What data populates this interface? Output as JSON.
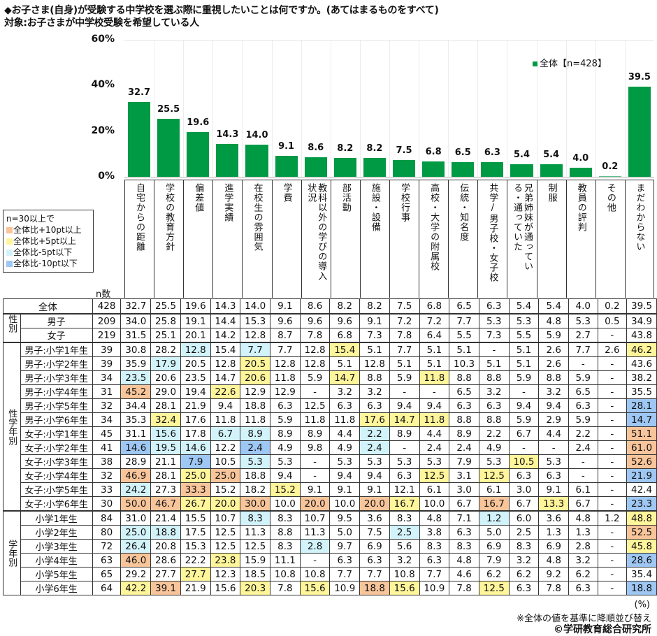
{
  "header": {
    "title": "◆お子さま(自身)が受験する中学校を選ぶ際に重視したいことは何ですか。(あてはまるものをすべて)",
    "subtitle": "対象:お子さまが中学校受験を希望している人"
  },
  "chart_data": {
    "type": "bar",
    "title": "お子さま(自身)が受験する中学校を選ぶ際に重視したいことは何ですか。(あてはまるものをすべて)",
    "xlabel": "",
    "ylabel": "",
    "ylim": [
      0,
      60
    ],
    "yticks": [
      "60%",
      "40%",
      "20%",
      "0%"
    ],
    "legend": {
      "label": "全体【n=428】",
      "position": "top-right",
      "color": "#009944"
    },
    "grid": true,
    "categories": [
      "自宅からの距離",
      "学校の教育方針",
      "偏差値",
      "進学実績",
      "在校生の雰囲気",
      "学費",
      "教科以外の学びの導入状況",
      "部活動",
      "施設・設備",
      "学校行事",
      "高校・大学の附属校",
      "伝統・知名度",
      "共学/男子校・女子校",
      "兄弟姉妹が通っている・通っていた",
      "制服",
      "教員の評判",
      "その他",
      "まだわからない"
    ],
    "values": [
      32.7,
      25.5,
      19.6,
      14.3,
      14.0,
      9.1,
      8.6,
      8.2,
      8.2,
      7.5,
      6.8,
      6.5,
      6.3,
      5.4,
      5.4,
      4.0,
      0.2,
      39.5
    ]
  },
  "chart": {
    "yticks": [
      {
        "label": "60%",
        "value": 60
      },
      {
        "label": "40%",
        "value": 40
      },
      {
        "label": "20%",
        "value": 20
      },
      {
        "label": "0%",
        "value": 0
      }
    ],
    "legend_label": "全体【n=428】",
    "bar_color": "#009944"
  },
  "color_legend": {
    "title": "n=30以上で",
    "items": [
      {
        "label": "全体比+10pt以上",
        "color": "#f8c59a",
        "key": "o10"
      },
      {
        "label": "全体比+5pt以上",
        "color": "#fff59a",
        "key": "o5"
      },
      {
        "label": "全体比-5pt以下",
        "color": "#d3f3fa",
        "key": "u5"
      },
      {
        "label": "全体比-10pt以下",
        "color": "#9ec7f3",
        "key": "u10"
      }
    ]
  },
  "table": {
    "n_header": "n数",
    "groups": {
      "gender": "性別",
      "gender_grade": "性学年別",
      "grade": "学年別"
    },
    "rows": [
      {
        "group": "total",
        "label": "全体",
        "n": "428",
        "values": [
          "32.7",
          "25.5",
          "19.6",
          "14.3",
          "14.0",
          "9.1",
          "8.6",
          "8.2",
          "8.2",
          "7.5",
          "6.8",
          "6.5",
          "6.3",
          "5.4",
          "5.4",
          "4.0",
          "0.2",
          "39.5"
        ],
        "hl": [
          "",
          "",
          "",
          "",
          "",
          "",
          "",
          "",
          "",
          "",
          "",
          "",
          "",
          "",
          "",
          "",
          "",
          ""
        ]
      },
      {
        "group": "gender",
        "label": "男子",
        "n": "209",
        "values": [
          "34.0",
          "25.8",
          "19.1",
          "14.4",
          "15.3",
          "9.6",
          "9.6",
          "9.6",
          "9.1",
          "7.2",
          "7.2",
          "7.7",
          "5.3",
          "5.3",
          "4.8",
          "5.3",
          "0.5",
          "34.9"
        ],
        "hl": [
          "",
          "",
          "",
          "",
          "",
          "",
          "",
          "",
          "",
          "",
          "",
          "",
          "",
          "",
          "",
          "",
          "",
          ""
        ]
      },
      {
        "group": "gender",
        "label": "女子",
        "n": "219",
        "values": [
          "31.5",
          "25.1",
          "20.1",
          "14.2",
          "12.8",
          "8.7",
          "7.8",
          "6.8",
          "7.3",
          "7.8",
          "6.4",
          "5.5",
          "7.3",
          "5.5",
          "5.9",
          "2.7",
          "-",
          "43.8"
        ],
        "hl": [
          "",
          "",
          "",
          "",
          "",
          "",
          "",
          "",
          "",
          "",
          "",
          "",
          "",
          "",
          "",
          "",
          "",
          ""
        ]
      },
      {
        "group": "gender_grade",
        "label": "男子:小学1年生",
        "n": "39",
        "values": [
          "30.8",
          "28.2",
          "12.8",
          "15.4",
          "7.7",
          "7.7",
          "12.8",
          "15.4",
          "5.1",
          "7.7",
          "5.1",
          "5.1",
          "-",
          "5.1",
          "2.6",
          "7.7",
          "2.6",
          "46.2"
        ],
        "hl": [
          "",
          "",
          "u5",
          "",
          "u5",
          "",
          "",
          "o5",
          "",
          "",
          "",
          "",
          "",
          "",
          "",
          "",
          "",
          "o5"
        ]
      },
      {
        "group": "gender_grade",
        "label": "男子:小学2年生",
        "n": "39",
        "values": [
          "35.9",
          "17.9",
          "20.5",
          "12.8",
          "20.5",
          "12.8",
          "12.8",
          "5.1",
          "12.8",
          "5.1",
          "5.1",
          "10.3",
          "5.1",
          "5.1",
          "2.6",
          "-",
          "-",
          "43.6"
        ],
        "hl": [
          "",
          "u5",
          "",
          "",
          "o5",
          "",
          "",
          "",
          "",
          "",
          "",
          "",
          "",
          "",
          "",
          "",
          "",
          ""
        ]
      },
      {
        "group": "gender_grade",
        "label": "男子:小学3年生",
        "n": "34",
        "values": [
          "23.5",
          "20.6",
          "23.5",
          "14.7",
          "20.6",
          "11.8",
          "5.9",
          "14.7",
          "8.8",
          "5.9",
          "11.8",
          "8.8",
          "8.8",
          "5.9",
          "8.8",
          "5.9",
          "-",
          "38.2"
        ],
        "hl": [
          "u5",
          "",
          "",
          "",
          "o5",
          "",
          "",
          "o5",
          "",
          "",
          "o5",
          "",
          "",
          "",
          "",
          "",
          "",
          ""
        ]
      },
      {
        "group": "gender_grade",
        "label": "男子:小学4年生",
        "n": "31",
        "values": [
          "45.2",
          "29.0",
          "19.4",
          "22.6",
          "12.9",
          "12.9",
          "-",
          "3.2",
          "3.2",
          "-",
          "-",
          "6.5",
          "3.2",
          "-",
          "3.2",
          "6.5",
          "-",
          "35.5"
        ],
        "hl": [
          "o10",
          "",
          "",
          "o5",
          "",
          "",
          "",
          "",
          "",
          "",
          "",
          "",
          "",
          "",
          "",
          "",
          "",
          ""
        ]
      },
      {
        "group": "gender_grade",
        "label": "男子:小学5年生",
        "n": "32",
        "values": [
          "34.4",
          "28.1",
          "21.9",
          "9.4",
          "18.8",
          "6.3",
          "12.5",
          "6.3",
          "6.3",
          "9.4",
          "9.4",
          "6.3",
          "6.3",
          "9.4",
          "9.4",
          "6.3",
          "-",
          "28.1"
        ],
        "hl": [
          "",
          "",
          "",
          "",
          "",
          "",
          "",
          "",
          "",
          "",
          "",
          "",
          "",
          "",
          "",
          "",
          "",
          "u10"
        ]
      },
      {
        "group": "gender_grade",
        "label": "男子:小学6年生",
        "n": "34",
        "values": [
          "35.3",
          "32.4",
          "17.6",
          "11.8",
          "11.8",
          "5.9",
          "11.8",
          "11.8",
          "17.6",
          "14.7",
          "11.8",
          "8.8",
          "8.8",
          "5.9",
          "2.9",
          "5.9",
          "-",
          "14.7"
        ],
        "hl": [
          "",
          "o5",
          "",
          "",
          "",
          "",
          "",
          "",
          "o5",
          "o5",
          "o5",
          "",
          "",
          "",
          "",
          "",
          "",
          "u10"
        ]
      },
      {
        "group": "gender_grade",
        "label": "女子:小学1年生",
        "n": "45",
        "values": [
          "31.1",
          "15.6",
          "17.8",
          "6.7",
          "8.9",
          "8.9",
          "8.9",
          "4.4",
          "2.2",
          "8.9",
          "4.4",
          "8.9",
          "2.2",
          "6.7",
          "4.4",
          "2.2",
          "-",
          "51.1"
        ],
        "hl": [
          "",
          "u5",
          "",
          "u5",
          "u5",
          "",
          "",
          "",
          "u5",
          "",
          "",
          "",
          "",
          "",
          "",
          "",
          "",
          "o10"
        ]
      },
      {
        "group": "gender_grade",
        "label": "女子:小学2年生",
        "n": "41",
        "values": [
          "14.6",
          "19.5",
          "14.6",
          "12.2",
          "2.4",
          "4.9",
          "9.8",
          "4.9",
          "2.4",
          "-",
          "2.4",
          "2.4",
          "4.9",
          "-",
          "-",
          "2.4",
          "-",
          "61.0"
        ],
        "hl": [
          "u10",
          "u5",
          "u5",
          "",
          "u10",
          "",
          "",
          "",
          "u5",
          "",
          "",
          "",
          "",
          "",
          "",
          "",
          "",
          "o10"
        ]
      },
      {
        "group": "gender_grade",
        "label": "女子:小学3年生",
        "n": "38",
        "values": [
          "28.9",
          "21.1",
          "7.9",
          "10.5",
          "5.3",
          "5.3",
          "-",
          "5.3",
          "5.3",
          "5.3",
          "5.3",
          "7.9",
          "5.3",
          "10.5",
          "5.3",
          "-",
          "-",
          "52.6"
        ],
        "hl": [
          "",
          "",
          "u10",
          "",
          "u5",
          "",
          "",
          "",
          "",
          "",
          "",
          "",
          "",
          "o5",
          "",
          "",
          "",
          "o10"
        ]
      },
      {
        "group": "gender_grade",
        "label": "女子:小学4年生",
        "n": "32",
        "values": [
          "46.9",
          "28.1",
          "25.0",
          "25.0",
          "18.8",
          "9.4",
          "-",
          "9.4",
          "9.4",
          "6.3",
          "12.5",
          "3.1",
          "12.5",
          "6.3",
          "6.3",
          "-",
          "-",
          "21.9"
        ],
        "hl": [
          "o10",
          "",
          "o5",
          "o10",
          "",
          "",
          "",
          "",
          "",
          "",
          "o5",
          "",
          "o5",
          "",
          "",
          "",
          "",
          "u10"
        ]
      },
      {
        "group": "gender_grade",
        "label": "女子:小学5年生",
        "n": "33",
        "values": [
          "24.2",
          "27.3",
          "33.3",
          "15.2",
          "18.2",
          "15.2",
          "9.1",
          "9.1",
          "9.1",
          "12.1",
          "6.1",
          "3.0",
          "6.1",
          "3.0",
          "9.1",
          "6.1",
          "-",
          "42.4"
        ],
        "hl": [
          "u5",
          "",
          "o10",
          "",
          "",
          "o5",
          "",
          "",
          "",
          "",
          "",
          "",
          "",
          "",
          "",
          "",
          "",
          ""
        ]
      },
      {
        "group": "gender_grade",
        "label": "女子:小学6年生",
        "n": "30",
        "values": [
          "50.0",
          "46.7",
          "26.7",
          "20.0",
          "30.0",
          "10.0",
          "20.0",
          "10.0",
          "20.0",
          "16.7",
          "10.0",
          "6.7",
          "16.7",
          "6.7",
          "13.3",
          "6.7",
          "-",
          "23.3"
        ],
        "hl": [
          "o10",
          "o10",
          "o5",
          "o5",
          "o10",
          "",
          "o10",
          "",
          "o10",
          "o5",
          "",
          "",
          "o10",
          "",
          "o5",
          "",
          "",
          "u10"
        ]
      },
      {
        "group": "grade",
        "label": "小学1年生",
        "n": "84",
        "values": [
          "31.0",
          "21.4",
          "15.5",
          "10.7",
          "8.3",
          "8.3",
          "10.7",
          "9.5",
          "3.6",
          "8.3",
          "4.8",
          "7.1",
          "1.2",
          "6.0",
          "3.6",
          "4.8",
          "1.2",
          "48.8"
        ],
        "hl": [
          "",
          "",
          "",
          "",
          "u5",
          "",
          "",
          "",
          "",
          "",
          "",
          "",
          "u5",
          "",
          "",
          "",
          "",
          "o5"
        ]
      },
      {
        "group": "grade",
        "label": "小学2年生",
        "n": "80",
        "values": [
          "25.0",
          "18.8",
          "17.5",
          "12.5",
          "11.3",
          "8.8",
          "11.3",
          "5.0",
          "7.5",
          "2.5",
          "3.8",
          "6.3",
          "5.0",
          "2.5",
          "1.3",
          "1.3",
          "-",
          "52.5"
        ],
        "hl": [
          "u5",
          "u5",
          "",
          "",
          "",
          "",
          "",
          "",
          "",
          "u5",
          "",
          "",
          "",
          "",
          "",
          "",
          "",
          "o10"
        ]
      },
      {
        "group": "grade",
        "label": "小学3年生",
        "n": "72",
        "values": [
          "26.4",
          "20.8",
          "15.3",
          "12.5",
          "12.5",
          "8.3",
          "2.8",
          "9.7",
          "6.9",
          "5.6",
          "8.3",
          "8.3",
          "6.9",
          "8.3",
          "6.9",
          "2.8",
          "-",
          "45.8"
        ],
        "hl": [
          "u5",
          "",
          "",
          "",
          "",
          "",
          "u5",
          "",
          "",
          "",
          "",
          "",
          "",
          "",
          "",
          "",
          "",
          "o5"
        ]
      },
      {
        "group": "grade",
        "label": "小学4年生",
        "n": "63",
        "values": [
          "46.0",
          "28.6",
          "22.2",
          "23.8",
          "15.9",
          "11.1",
          "-",
          "6.3",
          "6.3",
          "3.2",
          "6.3",
          "4.8",
          "7.9",
          "3.2",
          "4.8",
          "3.2",
          "-",
          "28.6"
        ],
        "hl": [
          "o10",
          "",
          "",
          "o5",
          "",
          "",
          "",
          "",
          "",
          "",
          "",
          "",
          "",
          "",
          "",
          "",
          "",
          "u10"
        ]
      },
      {
        "group": "grade",
        "label": "小学5年生",
        "n": "65",
        "values": [
          "29.2",
          "27.7",
          "27.7",
          "12.3",
          "18.5",
          "10.8",
          "10.8",
          "7.7",
          "7.7",
          "10.8",
          "7.7",
          "4.6",
          "6.2",
          "6.2",
          "9.2",
          "6.2",
          "-",
          "35.4"
        ],
        "hl": [
          "",
          "",
          "o5",
          "",
          "",
          "",
          "",
          "",
          "",
          "",
          "",
          "",
          "",
          "",
          "",
          "",
          "",
          ""
        ]
      },
      {
        "group": "grade",
        "label": "小学6年生",
        "n": "64",
        "values": [
          "42.2",
          "39.1",
          "21.9",
          "15.6",
          "20.3",
          "7.8",
          "15.6",
          "10.9",
          "18.8",
          "15.6",
          "10.9",
          "7.8",
          "12.5",
          "6.3",
          "7.8",
          "6.3",
          "-",
          "18.8"
        ],
        "hl": [
          "o5",
          "o10",
          "",
          "",
          "o5",
          "",
          "o5",
          "",
          "o10",
          "o5",
          "",
          "",
          "o5",
          "",
          "",
          "",
          "",
          "u10"
        ]
      }
    ]
  },
  "footer": {
    "unit": "(%)",
    "note": "※全体の値を基準に降順並び替え",
    "copyright": "©学研教育総合研究所"
  }
}
